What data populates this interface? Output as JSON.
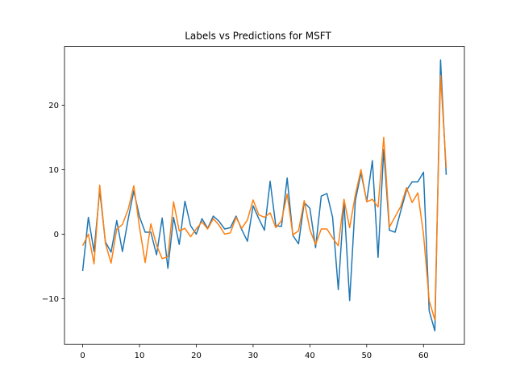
{
  "chart_data": {
    "type": "line",
    "title": "Labels vs Predictions for MSFT",
    "xlabel": "",
    "ylabel": "",
    "xlim": [
      -3.2,
      67.2
    ],
    "ylim": [
      -17.1,
      29.1
    ],
    "xticks": [
      0,
      10,
      20,
      30,
      40,
      50,
      60
    ],
    "yticks": [
      -10,
      0,
      10,
      20
    ],
    "xtick_labels": [
      "0",
      "10",
      "20",
      "30",
      "40",
      "50",
      "60"
    ],
    "ytick_labels": [
      "−10",
      "0",
      "10",
      "20"
    ],
    "grid": false,
    "legend": false,
    "series": [
      {
        "color": "#1f77b4",
        "x": [
          0,
          1,
          2,
          3,
          4,
          5,
          6,
          7,
          8,
          9,
          10,
          11,
          12,
          13,
          14,
          15,
          16,
          17,
          18,
          19,
          20,
          21,
          22,
          23,
          24,
          25,
          26,
          27,
          28,
          29,
          30,
          31,
          32,
          33,
          34,
          35,
          36,
          37,
          38,
          39,
          40,
          41,
          42,
          43,
          44,
          45,
          46,
          47,
          48,
          49,
          50,
          51,
          52,
          53,
          54,
          55,
          56,
          57,
          58,
          59,
          60,
          61,
          62,
          63,
          64
        ],
        "y": [
          -5.7,
          2.6,
          -2.7,
          6.8,
          -1.2,
          -2.8,
          2.1,
          -2.7,
          2.3,
          6.7,
          2.7,
          0.3,
          0.3,
          -3.2,
          2.5,
          -5.3,
          2.6,
          -1.6,
          5.1,
          1.3,
          0.0,
          2.4,
          0.9,
          2.8,
          2.0,
          0.8,
          1.0,
          2.8,
          0.7,
          -1.1,
          4.4,
          2.4,
          0.6,
          8.2,
          1.3,
          1.2,
          8.7,
          -0.2,
          -1.5,
          4.9,
          4.0,
          -2.1,
          5.9,
          6.3,
          2.6,
          -8.6,
          5.1,
          -10.3,
          5.2,
          9.5,
          5.1,
          11.4,
          -3.6,
          13.1,
          0.6,
          0.3,
          3.6,
          6.8,
          8.1,
          8.1,
          9.6,
          -11.9,
          -15.0,
          27.0,
          9.2
        ]
      },
      {
        "color": "#ff7f0e",
        "x": [
          0,
          1,
          2,
          3,
          4,
          5,
          6,
          7,
          8,
          9,
          10,
          11,
          12,
          13,
          14,
          15,
          16,
          17,
          18,
          19,
          20,
          21,
          22,
          23,
          24,
          25,
          26,
          27,
          28,
          29,
          30,
          31,
          32,
          33,
          34,
          35,
          36,
          37,
          38,
          39,
          40,
          41,
          42,
          43,
          44,
          45,
          46,
          47,
          48,
          49,
          50,
          51,
          52,
          53,
          54,
          55,
          56,
          57,
          58,
          59,
          60,
          61,
          62,
          63,
          64
        ],
        "y": [
          -1.8,
          0.0,
          -4.6,
          7.6,
          -1.4,
          -4.5,
          0.8,
          1.5,
          3.8,
          7.5,
          1.1,
          -4.4,
          1.6,
          -1.7,
          -3.8,
          -3.5,
          5.0,
          0.5,
          0.9,
          -0.4,
          0.8,
          1.9,
          0.8,
          2.4,
          1.4,
          0.0,
          0.2,
          2.6,
          0.9,
          2.2,
          5.3,
          3.0,
          2.6,
          3.3,
          1.0,
          2.1,
          6.2,
          -0.1,
          0.5,
          5.2,
          0.7,
          -1.6,
          0.8,
          0.8,
          -0.6,
          -1.8,
          5.4,
          1.0,
          6.1,
          10.0,
          5.0,
          5.4,
          4.2,
          15.0,
          1.1,
          2.7,
          4.3,
          7.2,
          4.9,
          6.4,
          0.0,
          -10.3,
          -13.3,
          24.6,
          10.3
        ]
      }
    ]
  }
}
